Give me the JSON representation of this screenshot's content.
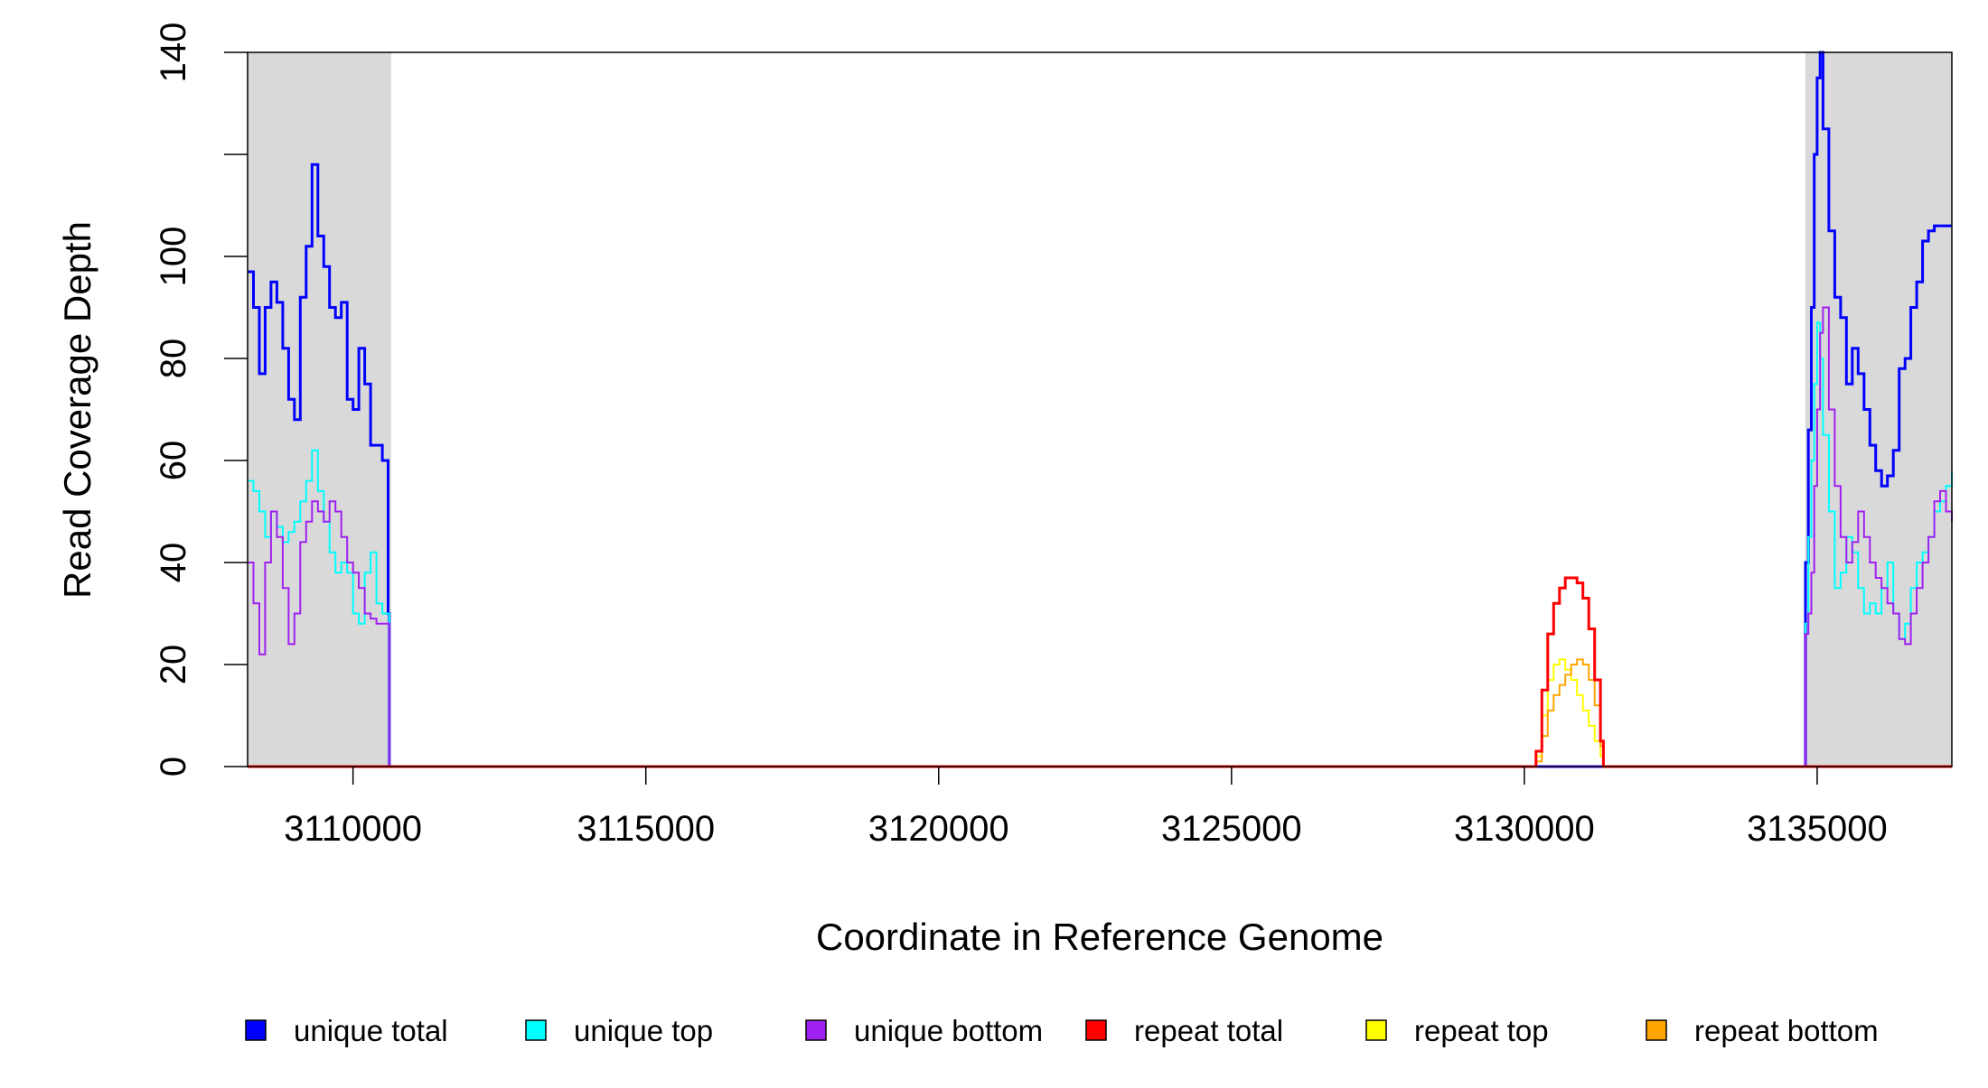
{
  "chart_data": {
    "type": "line",
    "title": "",
    "xlabel": "Coordinate in Reference Genome",
    "ylabel": "Read Coverage Depth",
    "xlim": [
      3108200,
      3137300
    ],
    "ylim": [
      0,
      140
    ],
    "xticks": [
      3110000,
      3115000,
      3120000,
      3125000,
      3130000,
      3135000
    ],
    "xtick_labels": [
      "3110000",
      "3115000",
      "3120000",
      "3125000",
      "3130000",
      "3135000"
    ],
    "yticks": [
      0,
      20,
      40,
      60,
      80,
      100,
      120,
      140
    ],
    "ytick_labels": [
      "0",
      "20",
      "40",
      "60",
      "80",
      "100",
      "",
      "140"
    ],
    "grid": false,
    "legend_position": "bottom",
    "shaded_regions": [
      {
        "x0": 3108200,
        "x1": 3110650,
        "color": "#d9d9d9"
      },
      {
        "x0": 3134800,
        "x1": 3137300,
        "color": "#d9d9d9"
      }
    ],
    "series": [
      {
        "name": "unique total",
        "color": "#0000ff",
        "width": 3,
        "x": [
          3108200,
          3108300,
          3108400,
          3108500,
          3108600,
          3108700,
          3108800,
          3108900,
          3109000,
          3109100,
          3109200,
          3109300,
          3109400,
          3109500,
          3109600,
          3109700,
          3109800,
          3109900,
          3110000,
          3110100,
          3110200,
          3110300,
          3110400,
          3110500,
          3110600,
          3110620,
          3110640,
          3110700,
          3134780,
          3134800,
          3134850,
          3134900,
          3134950,
          3135000,
          3135050,
          3135100,
          3135200,
          3135300,
          3135400,
          3135500,
          3135600,
          3135700,
          3135800,
          3135900,
          3136000,
          3136100,
          3136200,
          3136300,
          3136400,
          3136500,
          3136600,
          3136700,
          3136800,
          3136900,
          3137000,
          3137100,
          3137200,
          3137300
        ],
        "y": [
          97,
          90,
          77,
          90,
          95,
          91,
          82,
          72,
          68,
          92,
          102,
          118,
          104,
          98,
          90,
          88,
          91,
          72,
          70,
          82,
          75,
          63,
          63,
          60,
          30,
          0,
          0,
          0,
          0,
          40,
          66,
          90,
          120,
          135,
          140,
          125,
          105,
          92,
          88,
          75,
          82,
          77,
          70,
          63,
          58,
          55,
          57,
          62,
          78,
          80,
          90,
          95,
          103,
          105,
          106,
          106,
          106,
          106
        ]
      },
      {
        "name": "unique top",
        "color": "#00ffff",
        "width": 2,
        "x": [
          3108200,
          3108300,
          3108400,
          3108500,
          3108600,
          3108700,
          3108800,
          3108900,
          3109000,
          3109100,
          3109200,
          3109300,
          3109400,
          3109500,
          3109600,
          3109700,
          3109800,
          3109900,
          3110000,
          3110100,
          3110200,
          3110300,
          3110400,
          3110500,
          3110600,
          3110620,
          3110640,
          3110700,
          3134780,
          3134800,
          3134850,
          3134900,
          3134950,
          3135000,
          3135050,
          3135100,
          3135200,
          3135300,
          3135400,
          3135500,
          3135600,
          3135700,
          3135800,
          3135900,
          3136000,
          3136100,
          3136200,
          3136300,
          3136400,
          3136500,
          3136600,
          3136700,
          3136800,
          3136900,
          3137000,
          3137100,
          3137200,
          3137300
        ],
        "y": [
          56,
          54,
          50,
          45,
          50,
          47,
          44,
          46,
          48,
          52,
          56,
          62,
          54,
          48,
          42,
          38,
          40,
          38,
          30,
          28,
          38,
          42,
          32,
          30,
          30,
          0,
          0,
          0,
          0,
          28,
          45,
          60,
          75,
          87,
          80,
          65,
          50,
          35,
          38,
          45,
          42,
          35,
          30,
          32,
          30,
          35,
          40,
          30,
          25,
          28,
          35,
          40,
          42,
          45,
          50,
          52,
          55,
          58
        ]
      },
      {
        "name": "unique bottom",
        "color": "#a020f0",
        "width": 2,
        "x": [
          3108200,
          3108300,
          3108400,
          3108500,
          3108600,
          3108700,
          3108800,
          3108900,
          3109000,
          3109100,
          3109200,
          3109300,
          3109400,
          3109500,
          3109600,
          3109700,
          3109800,
          3109900,
          3110000,
          3110100,
          3110200,
          3110300,
          3110400,
          3110500,
          3110600,
          3110620,
          3110640,
          3110700,
          3134780,
          3134800,
          3134850,
          3134900,
          3134950,
          3135000,
          3135050,
          3135100,
          3135200,
          3135300,
          3135400,
          3135500,
          3135600,
          3135700,
          3135800,
          3135900,
          3136000,
          3136100,
          3136200,
          3136300,
          3136400,
          3136500,
          3136600,
          3136700,
          3136800,
          3136900,
          3137000,
          3137100,
          3137200,
          3137300
        ],
        "y": [
          40,
          32,
          22,
          40,
          50,
          45,
          35,
          24,
          30,
          44,
          48,
          52,
          50,
          48,
          52,
          50,
          45,
          40,
          38,
          35,
          30,
          29,
          28,
          28,
          28,
          0,
          0,
          0,
          0,
          26,
          30,
          38,
          55,
          70,
          85,
          90,
          70,
          55,
          45,
          40,
          44,
          50,
          45,
          40,
          37,
          35,
          32,
          30,
          25,
          24,
          30,
          35,
          40,
          45,
          52,
          54,
          50,
          48
        ]
      },
      {
        "name": "repeat total",
        "color": "#ff0000",
        "width": 3,
        "x": [
          3108200,
          3130150,
          3130200,
          3130300,
          3130400,
          3130500,
          3130600,
          3130700,
          3130800,
          3130900,
          3131000,
          3131100,
          3131200,
          3131300,
          3131350,
          3137300
        ],
        "y": [
          0,
          0,
          3,
          15,
          26,
          32,
          35,
          37,
          37,
          36,
          33,
          27,
          17,
          5,
          0,
          0
        ]
      },
      {
        "name": "repeat top",
        "color": "#ffff00",
        "width": 2,
        "x": [
          3108200,
          3130150,
          3130200,
          3130300,
          3130400,
          3130500,
          3130600,
          3130700,
          3130800,
          3130900,
          3131000,
          3131100,
          3131200,
          3131300,
          3131350,
          3137300
        ],
        "y": [
          0,
          0,
          2,
          10,
          17,
          20,
          21,
          19,
          17,
          14,
          11,
          8,
          5,
          2,
          0,
          0
        ]
      },
      {
        "name": "repeat bottom",
        "color": "#ffa500",
        "width": 2,
        "x": [
          3108200,
          3130150,
          3130200,
          3130300,
          3130400,
          3130500,
          3130600,
          3130700,
          3130800,
          3130900,
          3131000,
          3131100,
          3131200,
          3131300,
          3131350,
          3137300
        ],
        "y": [
          0,
          0,
          1,
          6,
          11,
          14,
          16,
          18,
          20,
          21,
          20,
          17,
          12,
          4,
          0,
          0
        ]
      }
    ]
  }
}
